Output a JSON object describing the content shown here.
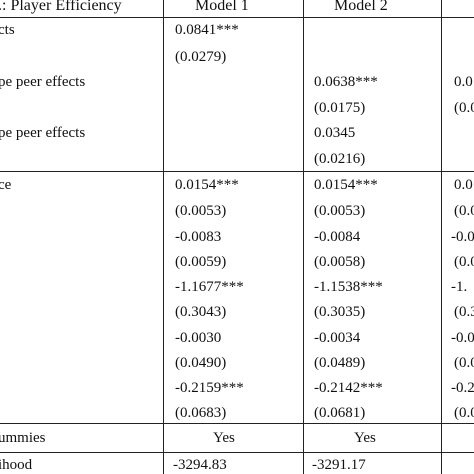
{
  "header": {
    "dep_var": "...: Player Efficiency",
    "model1": "Model 1",
    "model2": "Model 2"
  },
  "row_labels": {
    "effects": "cts",
    "type_peer_1": "pe peer effects",
    "type_peer_2": "pe peer effects",
    "ce": "ce",
    "dummies": "ummies",
    "likelihood": "ihood"
  },
  "model1": {
    "peer": "0.0841***",
    "peer_se": "(0.0279)",
    "c1": "0.0154***",
    "c1_se": "(0.0053)",
    "c2": "-0.0083",
    "c2_se": "(0.0059)",
    "c3": "-1.1677***",
    "c3_se": "(0.3043)",
    "c4": "-0.0030",
    "c4_se": "(0.0490)",
    "c5": "-0.2159***",
    "c5_se": "(0.0683)",
    "dummies": "Yes",
    "loglik": "-3294.83"
  },
  "model2": {
    "tp1": "0.0638***",
    "tp1_se": "(0.0175)",
    "tp2": "0.0345",
    "tp2_se": "(0.0216)",
    "c1": "0.0154***",
    "c1_se": "(0.0053)",
    "c2": "-0.0084",
    "c2_se": "(0.0058)",
    "c3": "-1.1538***",
    "c3_se": "(0.3035)",
    "c4": "-0.0034",
    "c4_se": "(0.0489)",
    "c5": "-0.2142***",
    "c5_se": "(0.0681)",
    "dummies": "Yes",
    "loglik": "-3291.17"
  },
  "model3_partial": {
    "tp1": "0.0",
    "tp1_se": "(0.0",
    "c1": "0.0",
    "c1_se": "(0.0",
    "c2": "-0.0",
    "c2_se": "(0.0",
    "c3": "-1.",
    "c3_se": "(0.3",
    "c4": "-0.0",
    "c4_se": "(0.0",
    "c5": "-0.2",
    "c5_se": "(0.0"
  }
}
